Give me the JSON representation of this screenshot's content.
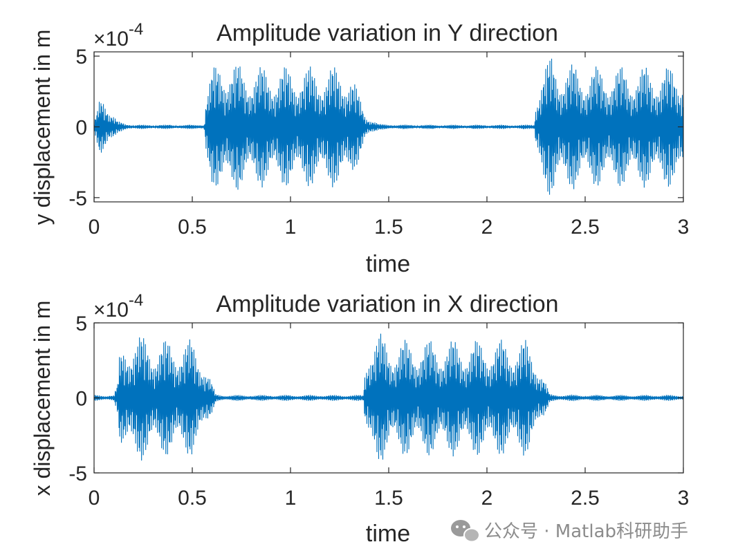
{
  "watermark": {
    "text": "公众号 · Matlab科研助手",
    "icon": "wechat-icon"
  },
  "chart_data": [
    {
      "type": "line",
      "title": "Amplitude variation in Y direction",
      "xlabel": "time",
      "ylabel": "y displacement in m",
      "exponent_label": "×10",
      "exponent": "-4",
      "xlim": [
        0,
        3
      ],
      "ylim": [
        -5.3,
        5.3
      ],
      "xticks": [
        "0",
        "0.5",
        "1",
        "1.5",
        "2",
        "2.5",
        "3"
      ],
      "yticks": [
        "-5",
        "0",
        "5"
      ],
      "color": "#0072BD",
      "grid": false,
      "series": [
        {
          "x": [
            0,
            0.02,
            0.03,
            0.05,
            0.08,
            0.12,
            0.2,
            0.3,
            0.4,
            0.5,
            0.56,
            0.57,
            0.6,
            0.65,
            0.7,
            0.8,
            0.9,
            1.0,
            1.1,
            1.2,
            1.3,
            1.32,
            1.38,
            1.45,
            1.6,
            1.8,
            2.0,
            2.1,
            2.2,
            2.24,
            2.25,
            2.28,
            2.33,
            2.38,
            2.5,
            2.7,
            2.9,
            3.0
          ],
          "envelope": [
            0.2,
            1.5,
            2.6,
            3.0,
            1.2,
            0.4,
            0.15,
            0.15,
            0.15,
            0.15,
            0.2,
            2.5,
            4.0,
            5.2,
            4.6,
            4.3,
            4.3,
            4.3,
            4.3,
            4.3,
            4.3,
            3.5,
            1.0,
            0.2,
            0.15,
            0.15,
            0.15,
            0.15,
            0.15,
            0.2,
            2.5,
            4.0,
            5.2,
            4.6,
            4.3,
            4.3,
            4.3,
            4.3
          ]
        }
      ]
    },
    {
      "type": "line",
      "title": "Amplitude variation in X direction",
      "xlabel": "time",
      "ylabel": "x displacement in m",
      "exponent_label": "×10",
      "exponent": "-4",
      "xlim": [
        0,
        3
      ],
      "ylim": [
        -5,
        5
      ],
      "xticks": [
        "0",
        "0.5",
        "1",
        "1.5",
        "2",
        "2.5",
        "3"
      ],
      "yticks": [
        "-5",
        "0",
        "5"
      ],
      "color": "#0072BD",
      "grid": false,
      "series": [
        {
          "x": [
            0,
            0.1,
            0.12,
            0.13,
            0.16,
            0.2,
            0.3,
            0.4,
            0.5,
            0.55,
            0.6,
            0.62,
            0.7,
            0.9,
            1.1,
            1.3,
            1.37,
            1.38,
            1.4,
            1.45,
            1.5,
            1.7,
            1.9,
            2.1,
            2.2,
            2.25,
            2.3,
            2.32,
            2.5,
            2.7,
            3.0
          ],
          "envelope": [
            0.2,
            0.2,
            1.0,
            3.0,
            4.0,
            4.4,
            3.9,
            3.9,
            3.9,
            3.0,
            1.0,
            0.25,
            0.2,
            0.2,
            0.2,
            0.2,
            0.2,
            2.5,
            4.2,
            4.4,
            3.9,
            3.9,
            3.9,
            3.9,
            3.9,
            3.0,
            1.0,
            0.25,
            0.2,
            0.2,
            0.2
          ]
        }
      ]
    }
  ]
}
